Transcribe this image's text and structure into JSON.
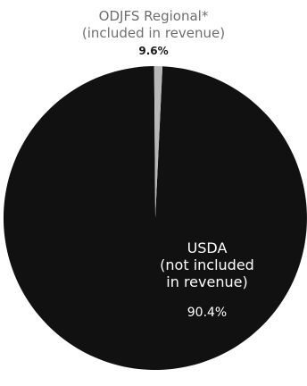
{
  "chart_data": {
    "type": "pie",
    "slices": [
      {
        "label_lines": [
          "ODJFS Regional*",
          "(included in revenue)"
        ],
        "value": 9.6,
        "value_label": "9.6%",
        "color": "#b8b8b8"
      },
      {
        "label_lines": [
          "USDA",
          "(not included",
          "in revenue)"
        ],
        "value": 90.4,
        "value_label": "90.4%",
        "color": "#111111"
      }
    ]
  }
}
